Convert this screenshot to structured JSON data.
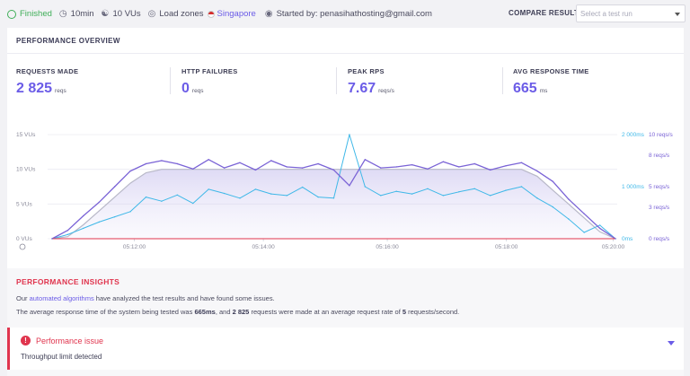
{
  "topbar": {
    "status": "Finished",
    "duration": "10min",
    "vus": "10 VUs",
    "load_zones_label": "Load zones",
    "zone": "Singapore",
    "started_by": "Started by: penasihathosting@gmail.com",
    "compare_label": "COMPARE RESULT",
    "compare_placeholder": "Select a test run"
  },
  "overview": {
    "title": "PERFORMANCE OVERVIEW",
    "stats": [
      {
        "label": "REQUESTS MADE",
        "value": "2 825",
        "unit": "reqs"
      },
      {
        "label": "HTTP FAILURES",
        "value": "0",
        "unit": "reqs"
      },
      {
        "label": "PEAK RPS",
        "value": "7.67",
        "unit": "reqs/s"
      },
      {
        "label": "AVG RESPONSE TIME",
        "value": "665",
        "unit": "ms"
      }
    ]
  },
  "chart_data": {
    "type": "line",
    "x_ticks": [
      "05:12:00",
      "05:14:00",
      "05:16:00",
      "05:18:00",
      "05:20:00"
    ],
    "left_axis": {
      "ticks": [
        "0 VUs",
        "5 VUs",
        "10 VUs",
        "15 VUs"
      ],
      "range": [
        0,
        15
      ]
    },
    "right_axis_ms": {
      "ticks": [
        "0ms",
        "1 000ms",
        "2 000ms"
      ],
      "range": [
        0,
        2000
      ]
    },
    "right_axis_rps": {
      "ticks": [
        "0 reqs/s",
        "3 reqs/s",
        "5 reqs/s",
        "8 reqs/s",
        "10 reqs/s"
      ],
      "range": [
        0,
        10
      ]
    },
    "colors": {
      "vus": "#b8b8c8",
      "rps": "#7a63d6",
      "response_time": "#3fb8e8",
      "failures": "#e0354e"
    },
    "series": [
      {
        "key": "vus",
        "values": [
          0,
          0.3,
          2,
          4,
          6,
          8,
          9.5,
          10,
          10,
          10,
          10,
          10,
          10,
          10,
          10,
          10,
          10,
          10,
          10,
          10,
          10,
          10,
          10,
          10,
          10,
          10,
          10,
          10,
          10,
          10,
          10,
          9,
          7,
          5,
          3,
          1,
          0
        ]
      },
      {
        "key": "rps",
        "values": [
          0,
          0.8,
          2.2,
          3.5,
          5,
          6.5,
          7.2,
          7.5,
          7.2,
          6.7,
          7.6,
          6.8,
          7.3,
          6.6,
          7.5,
          6.9,
          6.8,
          7.2,
          6.6,
          5.1,
          7.6,
          6.8,
          6.9,
          7.1,
          6.7,
          7.4,
          6.9,
          7.2,
          6.6,
          7.0,
          7.3,
          6.5,
          5.5,
          3.8,
          2.4,
          1.0,
          0
        ]
      },
      {
        "key": "response_time",
        "values": [
          0,
          80,
          200,
          320,
          420,
          520,
          800,
          720,
          840,
          680,
          950,
          870,
          780,
          950,
          860,
          830,
          990,
          800,
          780,
          2000,
          1000,
          830,
          910,
          860,
          960,
          830,
          900,
          960,
          830,
          930,
          1000,
          780,
          610,
          380,
          120,
          260,
          0
        ]
      },
      {
        "key": "failures",
        "values": [
          0,
          0,
          0,
          0,
          0,
          0,
          0,
          0,
          0,
          0,
          0,
          0,
          0,
          0,
          0,
          0,
          0,
          0,
          0,
          0,
          0,
          0,
          0,
          0,
          0,
          0,
          0,
          0,
          0,
          0,
          0,
          0,
          0,
          0,
          0,
          0,
          0
        ]
      }
    ]
  },
  "insights": {
    "title": "PERFORMANCE INSIGHTS",
    "line1_pre": "Our ",
    "line1_link": "automated algorithms",
    "line1_post": " have analyzed the test results and have found some issues.",
    "line2_a": "The average response time of the system being tested was ",
    "line2_b": "665ms",
    "line2_c": ", and ",
    "line2_d": "2 825",
    "line2_e": " requests were made at an average request rate of ",
    "line2_f": "5",
    "line2_g": " requests/second."
  },
  "issue": {
    "title": "Performance issue",
    "subtitle": "Throughput limit detected"
  }
}
